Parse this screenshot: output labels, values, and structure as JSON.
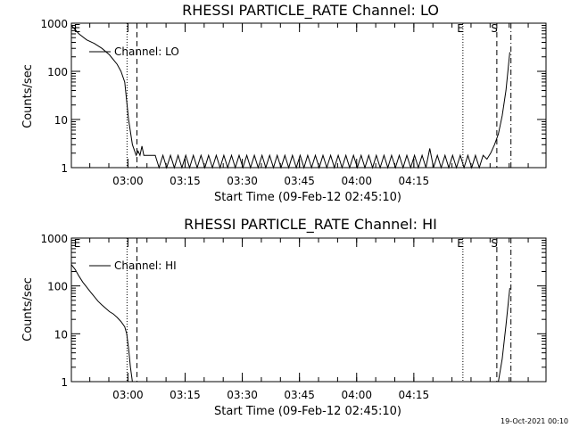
{
  "footer": {
    "timestamp": "19-Oct-2021 00:10"
  },
  "chart_data": [
    {
      "type": "line",
      "title": "RHESSI PARTICLE_RATE Channel: LO",
      "xlabel": "Start Time (09-Feb-12 02:45:10)",
      "ylabel": "Counts/sec",
      "y_scale": "log",
      "ylim": [
        1,
        1000
      ],
      "xlim_min": [
        0,
        124.5
      ],
      "x_ticks": [
        {
          "label": "03:00",
          "value": 14.83
        },
        {
          "label": "03:15",
          "value": 29.83
        },
        {
          "label": "03:30",
          "value": 44.83
        },
        {
          "label": "03:45",
          "value": 59.83
        },
        {
          "label": "04:00",
          "value": 74.83
        },
        {
          "label": "04:15",
          "value": 89.83
        }
      ],
      "y_ticks": [
        {
          "label": "1",
          "value": 1
        },
        {
          "label": "10",
          "value": 10
        },
        {
          "label": "100",
          "value": 100
        },
        {
          "label": "1000",
          "value": 1000
        }
      ],
      "legend": {
        "entry": "Channel: LO",
        "placement": "top-left"
      },
      "markers": [
        {
          "label": "E",
          "x_min": 0.4,
          "style": "none"
        },
        {
          "label": "",
          "x_min": 14.6,
          "style": "dotted"
        },
        {
          "label": "",
          "x_min": 17.2,
          "style": "dashed"
        },
        {
          "label": "E",
          "x_min": 102.7,
          "style": "dotted"
        },
        {
          "label": "S",
          "x_min": 111.6,
          "style": "dashed"
        },
        {
          "label": "",
          "x_min": 115.3,
          "style": "dashdot"
        }
      ],
      "series": [
        {
          "name": "Channel: LO",
          "x_min": [
            0,
            2,
            4,
            6,
            8,
            10,
            12,
            13,
            14,
            15,
            16,
            17,
            17.5,
            18,
            18.5,
            19,
            20,
            22,
            23,
            24,
            25,
            26,
            27,
            28,
            29,
            30,
            31,
            32,
            33,
            34,
            35,
            36,
            37,
            38,
            39,
            40,
            41,
            42,
            43,
            44,
            45,
            46,
            47,
            48,
            49,
            50,
            51,
            52,
            53,
            54,
            55,
            56,
            57,
            58,
            59,
            60,
            61,
            62,
            63,
            64,
            65,
            66,
            67,
            68,
            69,
            70,
            71,
            72,
            73,
            74,
            75,
            76,
            77,
            78,
            79,
            80,
            81,
            82,
            83,
            84,
            85,
            86,
            87,
            88,
            89,
            90,
            91,
            92,
            93,
            94,
            95,
            96,
            97,
            98,
            99,
            100,
            101,
            102,
            103,
            104,
            105,
            106,
            107,
            108,
            109,
            110,
            111,
            112,
            113,
            114,
            115
          ],
          "counts": [
            900,
            600,
            450,
            380,
            300,
            220,
            140,
            100,
            60,
            10,
            3,
            1.8,
            2.2,
            1.8,
            2.8,
            1.8,
            1.8,
            1.8,
            1,
            1.8,
            1,
            1.8,
            1,
            1.8,
            1,
            1.8,
            1,
            1.8,
            1,
            1.8,
            1,
            1.8,
            1,
            1.8,
            1,
            1.8,
            1,
            1.8,
            1,
            1.8,
            1,
            1.8,
            1,
            1.8,
            1,
            1.8,
            1,
            1.8,
            1,
            1.8,
            1,
            1.8,
            1,
            1.8,
            1,
            1.8,
            1,
            1.8,
            1,
            1.8,
            1,
            1.8,
            1,
            1.8,
            1,
            1.8,
            1,
            1.8,
            1,
            1.8,
            1,
            1.8,
            1,
            1.8,
            1,
            1.8,
            1,
            1.8,
            1,
            1.8,
            1,
            1.8,
            1,
            1.8,
            1,
            1.8,
            1,
            1.8,
            1,
            2.5,
            1,
            1.8,
            1,
            1.8,
            1,
            1.8,
            1,
            1.8,
            1,
            1.8,
            1,
            1.8,
            1,
            1.8,
            1.5,
            2,
            3,
            5,
            12,
            40,
            250
          ]
        }
      ]
    },
    {
      "type": "line",
      "title": "RHESSI PARTICLE_RATE Channel: HI",
      "xlabel": "Start Time (09-Feb-12 02:45:10)",
      "ylabel": "Counts/sec",
      "y_scale": "log",
      "ylim": [
        1,
        1000
      ],
      "xlim_min": [
        0,
        124.5
      ],
      "x_ticks": [
        {
          "label": "03:00",
          "value": 14.83
        },
        {
          "label": "03:15",
          "value": 29.83
        },
        {
          "label": "03:30",
          "value": 44.83
        },
        {
          "label": "03:45",
          "value": 59.83
        },
        {
          "label": "04:00",
          "value": 74.83
        },
        {
          "label": "04:15",
          "value": 89.83
        }
      ],
      "y_ticks": [
        {
          "label": "1",
          "value": 1
        },
        {
          "label": "10",
          "value": 10
        },
        {
          "label": "100",
          "value": 100
        },
        {
          "label": "1000",
          "value": 1000
        }
      ],
      "legend": {
        "entry": "Channel: HI",
        "placement": "top-left"
      },
      "markers": [
        {
          "label": "E",
          "x_min": 0.4,
          "style": "none"
        },
        {
          "label": "",
          "x_min": 14.6,
          "style": "dotted"
        },
        {
          "label": "",
          "x_min": 17.2,
          "style": "dashed"
        },
        {
          "label": "E",
          "x_min": 102.7,
          "style": "dotted"
        },
        {
          "label": "S",
          "x_min": 111.6,
          "style": "dashed"
        },
        {
          "label": "",
          "x_min": 115.3,
          "style": "dashdot"
        }
      ],
      "series": [
        {
          "name": "Channel: HI",
          "x_min": [
            0,
            1,
            2,
            3,
            4,
            5,
            6,
            7,
            8,
            9,
            10,
            11,
            12,
            13,
            14,
            14.5,
            15,
            15.5,
            16
          ],
          "counts": [
            280,
            220,
            160,
            120,
            95,
            75,
            60,
            48,
            40,
            34,
            29,
            26,
            22,
            18,
            14,
            10,
            5,
            2,
            1
          ]
        },
        {
          "name": "",
          "x_min": [
            112,
            113,
            114,
            115
          ],
          "counts": [
            1,
            3,
            15,
            90
          ]
        }
      ]
    }
  ]
}
